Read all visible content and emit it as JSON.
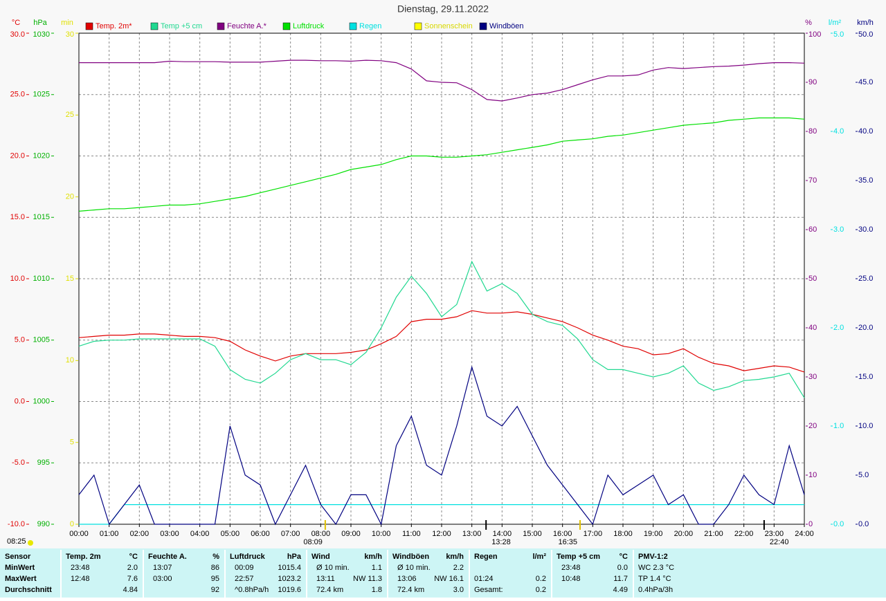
{
  "chart_data": {
    "type": "line",
    "title": "Dienstag, 29.11.2022",
    "axes": {
      "temp": {
        "label": "°C",
        "color": "#e00000",
        "lim": [
          -10,
          30
        ],
        "ticks": [
          {
            "value": -10,
            "label": "-10.0"
          },
          {
            "value": -5,
            "label": "-5.0"
          },
          {
            "value": 0,
            "label": "0.0"
          },
          {
            "value": 5,
            "label": "5.0"
          },
          {
            "value": 10,
            "label": "10.0"
          },
          {
            "value": 15,
            "label": "15.0"
          },
          {
            "value": 20,
            "label": "20.0"
          },
          {
            "value": 25,
            "label": "25.0"
          },
          {
            "value": 30,
            "label": "30.0"
          }
        ]
      },
      "hpa": {
        "label": "hPa",
        "color": "#00b000",
        "lim": [
          990,
          1030
        ],
        "ticks": [
          990,
          995,
          1000,
          1005,
          1010,
          1015,
          1020,
          1025,
          1030
        ]
      },
      "min": {
        "label": "min",
        "color": "#e0e000",
        "lim": [
          0,
          30
        ],
        "ticks": [
          0,
          5,
          10,
          15,
          20,
          25,
          30
        ]
      },
      "pct": {
        "label": "%",
        "color": "#800080",
        "lim": [
          0,
          100
        ],
        "ticks": [
          0,
          10,
          20,
          30,
          40,
          50,
          60,
          70,
          80,
          90,
          100
        ]
      },
      "rain": {
        "label": "l/m²",
        "color": "#00e0e0",
        "lim": [
          0,
          5
        ],
        "ticks": [
          {
            "value": 0,
            "label": "0.0"
          },
          {
            "value": 1,
            "label": "1.0"
          },
          {
            "value": 2,
            "label": "2.0"
          },
          {
            "value": 3,
            "label": "3.0"
          },
          {
            "value": 4,
            "label": "4.0"
          },
          {
            "value": 5,
            "label": "5.0"
          }
        ]
      },
      "wind": {
        "label": "km/h",
        "color": "#000080",
        "lim": [
          0,
          50
        ],
        "ticks": [
          {
            "value": 0,
            "label": "0.0"
          },
          {
            "value": 5,
            "label": "5.0"
          },
          {
            "value": 10,
            "label": "10.0"
          },
          {
            "value": 15,
            "label": "15.0"
          },
          {
            "value": 20,
            "label": "20.0"
          },
          {
            "value": 25,
            "label": "25.0"
          },
          {
            "value": 30,
            "label": "30.0"
          },
          {
            "value": 35,
            "label": "35.0"
          },
          {
            "value": 40,
            "label": "40.0"
          },
          {
            "value": 45,
            "label": "45.0"
          },
          {
            "value": 50,
            "label": "50.0"
          }
        ]
      }
    },
    "xlim": [
      0,
      24
    ],
    "xticks": [
      {
        "value": 0,
        "label": "00:00"
      },
      {
        "value": 1,
        "label": "01:00"
      },
      {
        "value": 2,
        "label": "02:00"
      },
      {
        "value": 3,
        "label": "03:00"
      },
      {
        "value": 4,
        "label": "04:00"
      },
      {
        "value": 5,
        "label": "05:00"
      },
      {
        "value": 6,
        "label": "06:00"
      },
      {
        "value": 7,
        "label": "07:00"
      },
      {
        "value": 8,
        "label": "08:00"
      },
      {
        "value": 9,
        "label": "09:00"
      },
      {
        "value": 10,
        "label": "10:00"
      },
      {
        "value": 11,
        "label": "11:00"
      },
      {
        "value": 12,
        "label": "12:00"
      },
      {
        "value": 13,
        "label": "13:00"
      },
      {
        "value": 14,
        "label": "14:00"
      },
      {
        "value": 15,
        "label": "15:00"
      },
      {
        "value": 16,
        "label": "16:00"
      },
      {
        "value": 17,
        "label": "17:00"
      },
      {
        "value": 18,
        "label": "18:00"
      },
      {
        "value": 19,
        "label": "19:00"
      },
      {
        "value": 20,
        "label": "20:00"
      },
      {
        "value": 21,
        "label": "21:00"
      },
      {
        "value": 22,
        "label": "22:00"
      },
      {
        "value": 23,
        "label": "23:00"
      },
      {
        "value": 24,
        "label": "24:00"
      }
    ],
    "grid": true,
    "x": [
      0,
      0.5,
      1,
      1.5,
      2,
      2.5,
      3,
      3.5,
      4,
      4.5,
      5,
      5.5,
      6,
      6.5,
      7,
      7.5,
      8,
      8.5,
      9,
      9.5,
      10,
      10.5,
      11,
      11.5,
      12,
      12.5,
      13,
      13.5,
      14,
      14.5,
      15,
      15.5,
      16,
      16.5,
      17,
      17.5,
      18,
      18.5,
      19,
      19.5,
      20,
      20.5,
      21,
      21.5,
      22,
      22.5,
      23,
      23.5,
      24
    ],
    "series": [
      {
        "name": "Temp. 2m*",
        "color": "#e00000",
        "axis": "temp",
        "values": [
          5.2,
          5.3,
          5.4,
          5.4,
          5.5,
          5.5,
          5.4,
          5.3,
          5.3,
          5.2,
          4.9,
          4.2,
          3.7,
          3.3,
          3.7,
          3.9,
          3.9,
          3.9,
          4.0,
          4.2,
          4.7,
          5.3,
          6.5,
          6.7,
          6.7,
          6.9,
          7.4,
          7.2,
          7.2,
          7.3,
          7.1,
          6.8,
          6.5,
          6.0,
          5.4,
          5.0,
          4.5,
          4.3,
          3.8,
          3.9,
          4.3,
          3.6,
          3.1,
          2.9,
          2.5,
          2.7,
          2.9,
          2.8,
          2.4
        ]
      },
      {
        "name": "Temp +5 cm",
        "color": "#20d890",
        "axis": "temp",
        "values": [
          4.5,
          4.9,
          5.0,
          5.0,
          5.1,
          5.1,
          5.1,
          5.1,
          5.1,
          4.5,
          2.6,
          1.8,
          1.5,
          2.3,
          3.4,
          3.9,
          3.4,
          3.4,
          3.0,
          4.0,
          6.0,
          8.5,
          10.2,
          8.8,
          6.9,
          7.9,
          11.4,
          9.0,
          9.6,
          8.8,
          7.1,
          6.5,
          6.2,
          5.1,
          3.4,
          2.6,
          2.6,
          2.3,
          2.0,
          2.3,
          2.9,
          1.5,
          0.9,
          1.2,
          1.7,
          1.8,
          2.0,
          2.3,
          0.3
        ]
      },
      {
        "name": "Feuchte A.*",
        "color": "#800080",
        "axis": "pct",
        "values": [
          94,
          94,
          94,
          94,
          94,
          94,
          94.3,
          94.2,
          94.2,
          94.2,
          94.1,
          94.1,
          94.1,
          94.3,
          94.5,
          94.5,
          94.4,
          94.4,
          94.3,
          94.5,
          94.4,
          94,
          92.7,
          90.3,
          90,
          89.9,
          88.5,
          86.5,
          86.2,
          86.8,
          87.5,
          87.8,
          88.5,
          89.5,
          90.5,
          91.3,
          91.3,
          91.5,
          92.5,
          93,
          92.8,
          93,
          93.2,
          93.3,
          93.5,
          93.8,
          94,
          94,
          93.9
        ]
      },
      {
        "name": "Luftdruck",
        "color": "#00e000",
        "axis": "hpa",
        "values": [
          1015.5,
          1015.6,
          1015.7,
          1015.7,
          1015.8,
          1015.9,
          1016.0,
          1016.0,
          1016.1,
          1016.3,
          1016.5,
          1016.7,
          1017.0,
          1017.3,
          1017.6,
          1017.9,
          1018.2,
          1018.5,
          1018.9,
          1019.1,
          1019.3,
          1019.7,
          1020.0,
          1020.0,
          1019.9,
          1019.9,
          1020.0,
          1020.1,
          1020.3,
          1020.5,
          1020.7,
          1020.9,
          1021.2,
          1021.3,
          1021.4,
          1021.6,
          1021.7,
          1021.9,
          1022.1,
          1022.3,
          1022.5,
          1022.6,
          1022.7,
          1022.9,
          1023.0,
          1023.1,
          1023.1,
          1023.1,
          1023.0
        ]
      },
      {
        "name": "Regen",
        "color": "#00e0e0",
        "axis": "rain",
        "values": [
          0,
          0,
          0,
          0.2,
          0.2,
          0.2,
          0.2,
          0.2,
          0.2,
          0.2,
          0.2,
          0.2,
          0.2,
          0.2,
          0.2,
          0.2,
          0.2,
          0.2,
          0.2,
          0.2,
          0.2,
          0.2,
          0.2,
          0.2,
          0.2,
          0.2,
          0.2,
          0.2,
          0.2,
          0.2,
          0.2,
          0.2,
          0.2,
          0.2,
          0.2,
          0.2,
          0.2,
          0.2,
          0.2,
          0.2,
          0.2,
          0.2,
          0.2,
          0.2,
          0.2,
          0.2,
          0.2,
          0.2,
          0.2
        ]
      },
      {
        "name": "Sonnenschein",
        "color": "#ffff00",
        "axis": "min"
      },
      {
        "name": "Windböen",
        "color": "#000080",
        "axis": "wind",
        "values": [
          3,
          5,
          0,
          2,
          4,
          0,
          0,
          0,
          0,
          0,
          10,
          5,
          4,
          0,
          3,
          6,
          2,
          0,
          3,
          3,
          0,
          8,
          11,
          6,
          5,
          10,
          16,
          11,
          10,
          12,
          9,
          6,
          4,
          2,
          0,
          5,
          3,
          4,
          5,
          2,
          3,
          0,
          0,
          2,
          5,
          3,
          2,
          8,
          3
        ]
      }
    ],
    "annotations": [
      {
        "text": "08:09",
        "x": 8.15
      },
      {
        "text": "13:28",
        "x": 13.47
      },
      {
        "text": "16:35",
        "x": 16.58
      },
      {
        "text": "22:40",
        "x": 22.67
      }
    ],
    "footnote": "08:25"
  },
  "table": {
    "columns": [
      {
        "name": "Sensor"
      },
      {
        "name": "Temp. 2m",
        "unit": "°C"
      },
      {
        "name": "Feuchte A.",
        "unit": "%"
      },
      {
        "name": "Luftdruck",
        "unit": "hPa"
      },
      {
        "name": "Wind",
        "unit": "km/h"
      },
      {
        "name": "Windböen",
        "unit": "km/h"
      },
      {
        "name": "Regen",
        "unit": "l/m²"
      },
      {
        "name": "Temp +5 cm",
        "unit": "°C"
      },
      {
        "name": "PMV-1:2"
      }
    ],
    "rows": [
      {
        "label": "MinWert",
        "cells": [
          [
            "23:48",
            "2.0"
          ],
          [
            "13:07",
            "86"
          ],
          [
            "00:09",
            "1015.4"
          ],
          [
            "Ø 10 min.",
            "1.1"
          ],
          [
            "Ø 10 min.",
            "2.2"
          ],
          null,
          [
            "23:48",
            "0.0"
          ],
          [
            "WC 2.3 °C"
          ]
        ]
      },
      {
        "label": "MaxWert",
        "cells": [
          [
            "12:48",
            "7.6"
          ],
          [
            "03:00",
            "95"
          ],
          [
            "22:57",
            "1023.2"
          ],
          [
            "13:11",
            "NW 11.3"
          ],
          [
            "13:06",
            "NW 16.1"
          ],
          [
            "01:24",
            "0.2"
          ],
          [
            "10:48",
            "11.7"
          ],
          [
            "TP 1.4 °C"
          ]
        ]
      },
      {
        "label": "Durchschnitt",
        "cells": [
          [
            null,
            "4.84"
          ],
          [
            null,
            "92"
          ],
          [
            "^0.8hPa/h",
            "1019.6"
          ],
          [
            "72.4 km",
            "1.8"
          ],
          [
            "72.4 km",
            "3.0"
          ],
          [
            "Gesamt:",
            "0.2"
          ],
          [
            null,
            "4.49"
          ],
          [
            "0.4hPa/3h"
          ]
        ]
      }
    ]
  }
}
